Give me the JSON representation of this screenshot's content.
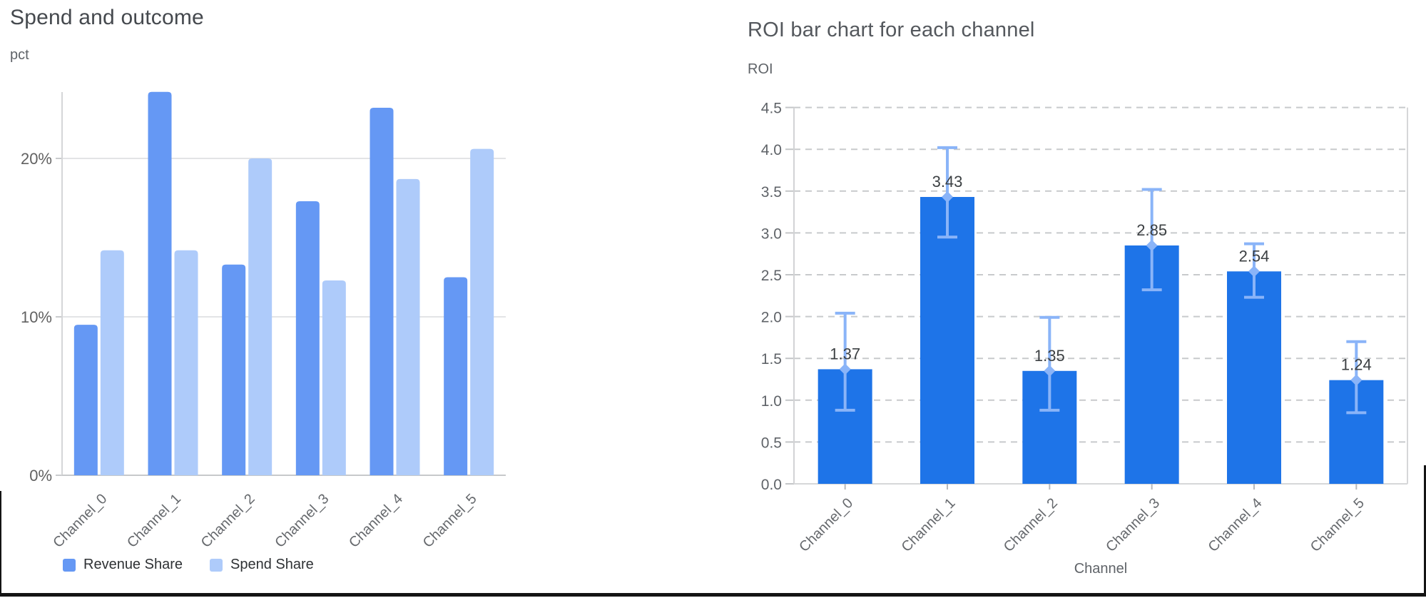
{
  "chart_data": [
    {
      "type": "bar",
      "title": "Spend and outcome",
      "ylabel": "pct",
      "xlabel": "",
      "categories": [
        "Channel_0",
        "Channel_1",
        "Channel_2",
        "Channel_3",
        "Channel_4",
        "Channel_5"
      ],
      "series": [
        {
          "name": "Revenue Share",
          "color": "#6598f4",
          "values": [
            9.5,
            24.2,
            13.3,
            17.3,
            23.2,
            12.5
          ]
        },
        {
          "name": "Spend Share",
          "color": "#aecbfa",
          "values": [
            14.2,
            14.2,
            20.0,
            12.3,
            18.7,
            20.6
          ]
        }
      ],
      "unit": "percent",
      "ylim": [
        0,
        25
      ],
      "yticks": [
        0,
        10,
        20
      ],
      "ytick_labels": [
        "0%",
        "10%",
        "20%"
      ],
      "grid": "solid",
      "legend_position": "bottom"
    },
    {
      "type": "bar",
      "title": "ROI bar chart for each channel",
      "ylabel": "ROI",
      "xlabel": "Channel",
      "categories": [
        "Channel_0",
        "Channel_1",
        "Channel_2",
        "Channel_3",
        "Channel_4",
        "Channel_5"
      ],
      "values": [
        1.37,
        3.43,
        1.35,
        2.85,
        2.54,
        1.24
      ],
      "data_labels": [
        "1.37",
        "3.43",
        "1.35",
        "2.85",
        "2.54",
        "1.24"
      ],
      "error_low": [
        0.88,
        2.95,
        0.88,
        2.32,
        2.23,
        0.85
      ],
      "error_high": [
        2.04,
        4.02,
        1.99,
        3.52,
        2.87,
        1.7
      ],
      "bar_color": "#1e74e8",
      "error_color": "#8ab4f8",
      "ylim": [
        0,
        4.5
      ],
      "yticks": [
        0,
        0.5,
        1.0,
        1.5,
        2.0,
        2.5,
        3.0,
        3.5,
        4.0,
        4.5
      ],
      "ytick_labels": [
        "0.0",
        "0.5",
        "1.0",
        "1.5",
        "2.0",
        "2.5",
        "3.0",
        "3.5",
        "4.0",
        "4.5"
      ],
      "grid": "dashed",
      "legend_position": "none"
    }
  ]
}
